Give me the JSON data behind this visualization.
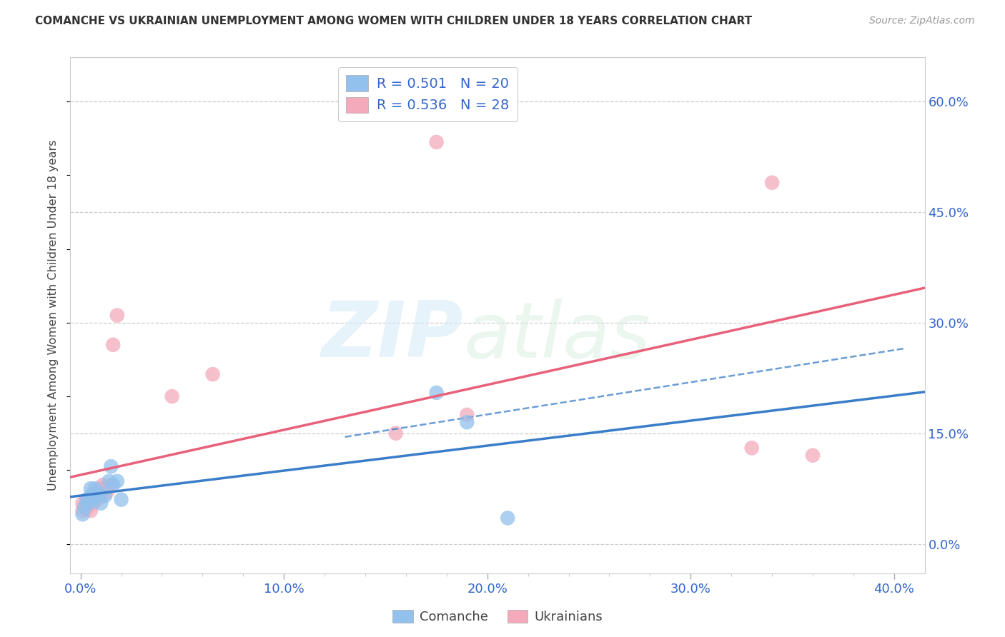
{
  "title": "COMANCHE VS UKRAINIAN UNEMPLOYMENT AMONG WOMEN WITH CHILDREN UNDER 18 YEARS CORRELATION CHART",
  "source": "Source: ZipAtlas.com",
  "xlabel_ticks": [
    "0.0%",
    "",
    "",
    "",
    "",
    "10.0%",
    "",
    "",
    "",
    "",
    "20.0%",
    "",
    "",
    "",
    "",
    "30.0%",
    "",
    "",
    "",
    "",
    "40.0%"
  ],
  "xlabel_vals": [
    0.0,
    0.02,
    0.04,
    0.06,
    0.08,
    0.1,
    0.12,
    0.14,
    0.16,
    0.18,
    0.2,
    0.22,
    0.24,
    0.26,
    0.28,
    0.3,
    0.32,
    0.34,
    0.36,
    0.38,
    0.4
  ],
  "xlabel_major_ticks": [
    0.0,
    0.1,
    0.2,
    0.3,
    0.4
  ],
  "xlabel_major_labels": [
    "0.0%",
    "10.0%",
    "20.0%",
    "30.0%",
    "40.0%"
  ],
  "ylabel_ticks": [
    "0.0%",
    "15.0%",
    "30.0%",
    "45.0%",
    "60.0%"
  ],
  "ylabel_vals": [
    0.0,
    0.15,
    0.3,
    0.45,
    0.6
  ],
  "ylabel_label": "Unemployment Among Women with Children Under 18 years",
  "comanche_R": "0.501",
  "comanche_N": "20",
  "ukrainian_R": "0.536",
  "ukrainian_N": "28",
  "comanche_color": "#92C1ED",
  "ukrainian_color": "#F4AABB",
  "comanche_line_color": "#3A7DC9",
  "ukrainian_line_color": "#E8607A",
  "comanche_x": [
    0.001,
    0.002,
    0.003,
    0.004,
    0.005,
    0.005,
    0.006,
    0.007,
    0.008,
    0.009,
    0.01,
    0.012,
    0.014,
    0.015,
    0.016,
    0.018,
    0.02,
    0.175,
    0.19,
    0.21
  ],
  "comanche_y": [
    0.04,
    0.05,
    0.06,
    0.055,
    0.065,
    0.075,
    0.06,
    0.075,
    0.065,
    0.07,
    0.055,
    0.065,
    0.085,
    0.105,
    0.08,
    0.085,
    0.06,
    0.205,
    0.165,
    0.035
  ],
  "ukrainian_x": [
    0.001,
    0.001,
    0.002,
    0.003,
    0.003,
    0.004,
    0.005,
    0.006,
    0.006,
    0.007,
    0.008,
    0.008,
    0.009,
    0.01,
    0.011,
    0.012,
    0.013,
    0.015,
    0.016,
    0.018,
    0.045,
    0.065,
    0.155,
    0.175,
    0.19,
    0.33,
    0.34,
    0.36
  ],
  "ukrainian_y": [
    0.045,
    0.055,
    0.05,
    0.048,
    0.058,
    0.052,
    0.045,
    0.055,
    0.068,
    0.058,
    0.06,
    0.07,
    0.075,
    0.065,
    0.08,
    0.075,
    0.07,
    0.08,
    0.27,
    0.31,
    0.2,
    0.23,
    0.15,
    0.545,
    0.175,
    0.13,
    0.49,
    0.12
  ],
  "xlim": [
    -0.005,
    0.415
  ],
  "ylim": [
    -0.04,
    0.66
  ],
  "background_color": "#FFFFFF",
  "grid_color": "#CCCCCC",
  "tick_color": "#AAAAAA",
  "label_color": "#444444",
  "axis_label_color": "#3366CC",
  "legend_R_color": "#3366CC",
  "legend_text_color": "#444444"
}
